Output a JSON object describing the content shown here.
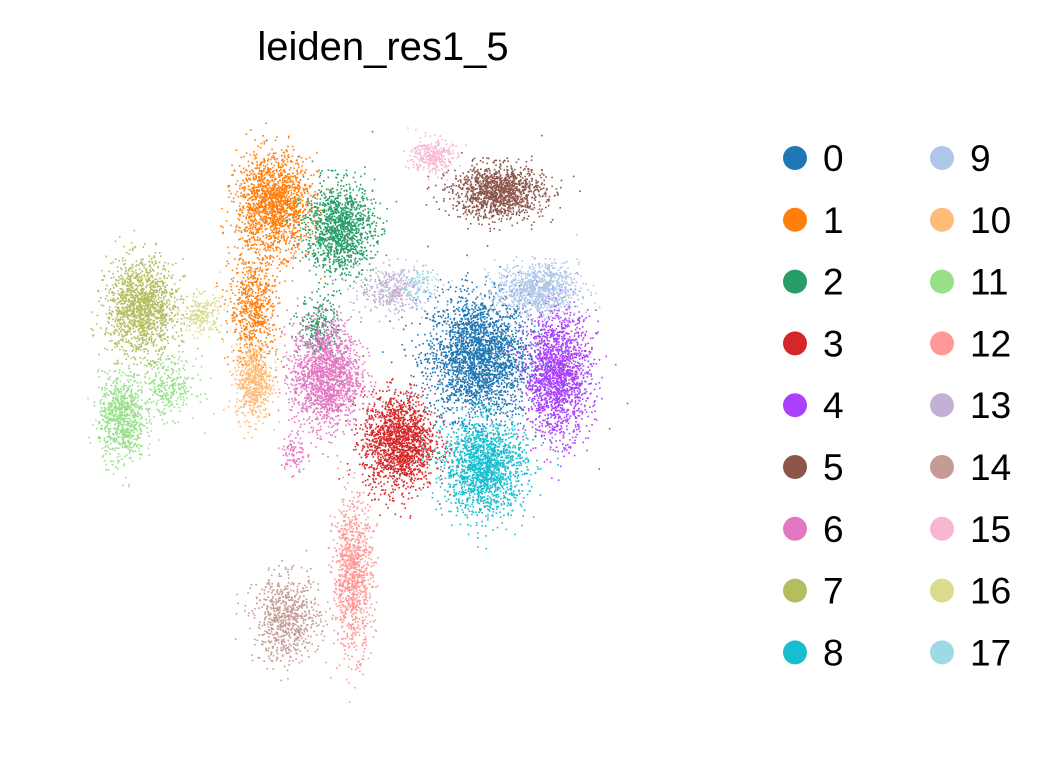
{
  "chart_data": {
    "type": "scatter",
    "title": "leiden_res1_5",
    "xlabel": "",
    "ylabel": "",
    "grid": false,
    "axes_visible": false,
    "legend_placement": "right",
    "xlim": [
      0,
      100
    ],
    "ylim": [
      0,
      100
    ],
    "series": [
      {
        "name": "0",
        "color": "#1f77b4",
        "clusters": [
          {
            "x": 64,
            "y": 58,
            "sx": 6.2,
            "sy": 8.2,
            "n": 2600
          }
        ]
      },
      {
        "name": "1",
        "color": "#ff7f0e",
        "clusters": [
          {
            "x": 33,
            "y": 83,
            "sx": 4.5,
            "sy": 6.5,
            "n": 1700
          },
          {
            "x": 30,
            "y": 66,
            "sx": 3.0,
            "sy": 7.5,
            "n": 700
          }
        ]
      },
      {
        "name": "2",
        "color": "#279e68",
        "clusters": [
          {
            "x": 43,
            "y": 79,
            "sx": 4.2,
            "sy": 6.0,
            "n": 1300
          },
          {
            "x": 40,
            "y": 63,
            "sx": 2.5,
            "sy": 4.0,
            "n": 250
          }
        ]
      },
      {
        "name": "3",
        "color": "#d62728",
        "clusters": [
          {
            "x": 52,
            "y": 44,
            "sx": 4.4,
            "sy": 6.4,
            "n": 1700
          }
        ]
      },
      {
        "name": "4",
        "color": "#aa40fc",
        "clusters": [
          {
            "x": 76,
            "y": 55,
            "sx": 4.0,
            "sy": 8.2,
            "n": 1800
          }
        ]
      },
      {
        "name": "5",
        "color": "#8c564b",
        "clusters": [
          {
            "x": 67,
            "y": 85,
            "sx": 5.6,
            "sy": 3.5,
            "n": 1300
          }
        ]
      },
      {
        "name": "6",
        "color": "#e377c2",
        "clusters": [
          {
            "x": 41,
            "y": 55,
            "sx": 4.2,
            "sy": 7.0,
            "n": 1700
          },
          {
            "x": 36,
            "y": 42,
            "sx": 1.5,
            "sy": 3.0,
            "n": 90
          }
        ]
      },
      {
        "name": "7",
        "color": "#b5bd61",
        "clusters": [
          {
            "x": 13,
            "y": 66,
            "sx": 4.3,
            "sy": 6.2,
            "n": 1500
          }
        ]
      },
      {
        "name": "8",
        "color": "#17becf",
        "clusters": [
          {
            "x": 65,
            "y": 40,
            "sx": 5.0,
            "sy": 6.4,
            "n": 1700
          }
        ]
      },
      {
        "name": "9",
        "color": "#aec7e8",
        "clusters": [
          {
            "x": 73,
            "y": 69,
            "sx": 5.0,
            "sy": 3.4,
            "n": 950
          }
        ]
      },
      {
        "name": "10",
        "color": "#ffbb78",
        "clusters": [
          {
            "x": 30,
            "y": 54,
            "sx": 2.2,
            "sy": 5.0,
            "n": 600
          }
        ]
      },
      {
        "name": "11",
        "color": "#98df8a",
        "clusters": [
          {
            "x": 10,
            "y": 48,
            "sx": 2.8,
            "sy": 5.8,
            "n": 800
          },
          {
            "x": 17,
            "y": 53,
            "sx": 3.5,
            "sy": 4.0,
            "n": 300
          }
        ]
      },
      {
        "name": "12",
        "color": "#ff9896",
        "clusters": [
          {
            "x": 45,
            "y": 22,
            "sx": 2.4,
            "sy": 10.0,
            "n": 1000
          }
        ]
      },
      {
        "name": "13",
        "color": "#c5b0d5",
        "clusters": [
          {
            "x": 51,
            "y": 69,
            "sx": 4.0,
            "sy": 3.0,
            "n": 350
          }
        ]
      },
      {
        "name": "14",
        "color": "#c49c94",
        "clusters": [
          {
            "x": 35,
            "y": 15,
            "sx": 4.0,
            "sy": 5.5,
            "n": 750
          }
        ]
      },
      {
        "name": "15",
        "color": "#f7b6d2",
        "clusters": [
          {
            "x": 57,
            "y": 91,
            "sx": 2.5,
            "sy": 2.3,
            "n": 300
          }
        ]
      },
      {
        "name": "16",
        "color": "#dbdb8d",
        "clusters": [
          {
            "x": 22,
            "y": 65,
            "sx": 2.4,
            "sy": 2.6,
            "n": 220
          }
        ]
      },
      {
        "name": "17",
        "color": "#9edae5",
        "clusters": [
          {
            "x": 55,
            "y": 70,
            "sx": 3.0,
            "sy": 2.5,
            "n": 120
          }
        ]
      }
    ]
  }
}
